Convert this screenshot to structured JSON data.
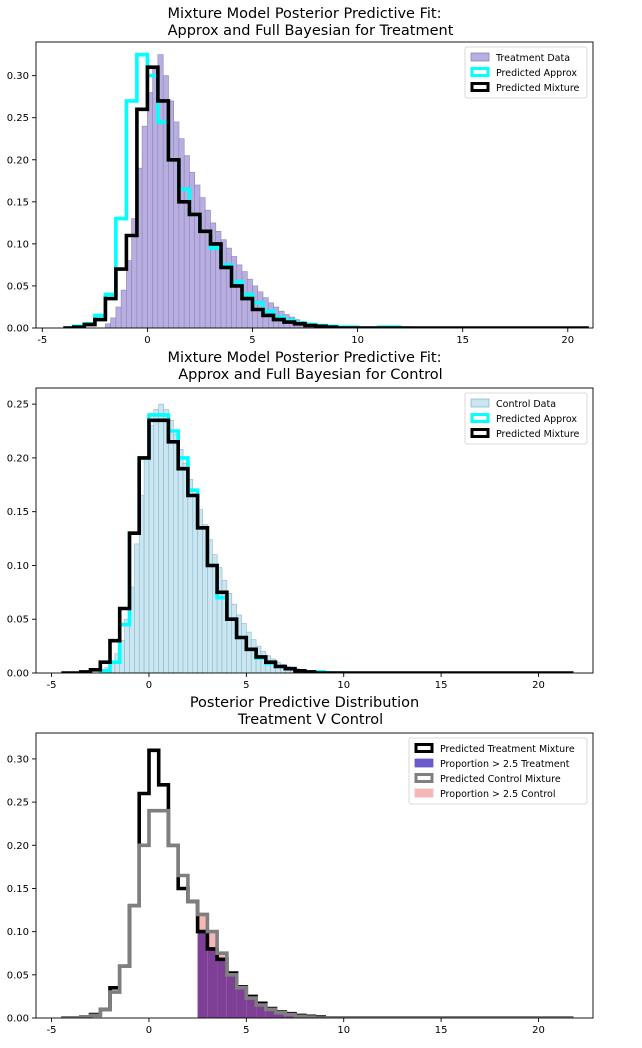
{
  "chart_data": [
    {
      "type": "histogram",
      "title_lines": [
        "Mixture Model Posterior Predictive Fit:",
        "Approx and Full Bayesian for Treatment"
      ],
      "xlim": [
        -5.3,
        21.2
      ],
      "ylim": [
        0,
        0.34
      ],
      "xticks": [
        -5,
        0,
        5,
        10,
        15,
        20
      ],
      "yticks": [
        0.0,
        0.05,
        0.1,
        0.15,
        0.2,
        0.25,
        0.3
      ],
      "grid": false,
      "legend_position": "top-right",
      "legend": [
        {
          "label": "Treatment Data",
          "style": "fill",
          "fill": "#b9aee0",
          "stroke": "#8e84b8"
        },
        {
          "label": "Predicted Approx",
          "style": "outline",
          "stroke": "#00ffff"
        },
        {
          "label": "Predicted Mixture",
          "style": "outline",
          "stroke": "#000000"
        }
      ],
      "data_hist": {
        "name": "Treatment Data",
        "fill": "#b9aee0",
        "edge": "#8e84b8",
        "start": -2.0,
        "width": 0.25,
        "values": [
          0.005,
          0.012,
          0.025,
          0.045,
          0.08,
          0.13,
          0.19,
          0.24,
          0.28,
          0.31,
          0.325,
          0.3,
          0.27,
          0.245,
          0.225,
          0.205,
          0.185,
          0.17,
          0.155,
          0.14,
          0.125,
          0.115,
          0.105,
          0.095,
          0.085,
          0.075,
          0.067,
          0.058,
          0.05,
          0.043,
          0.036,
          0.03,
          0.025,
          0.02,
          0.016,
          0.013,
          0.01,
          0.008,
          0.006,
          0.005,
          0.004,
          0.003,
          0.002,
          0.001
        ]
      },
      "step_series": [
        {
          "name": "Predicted Approx",
          "color": "#00ffff",
          "start": -4.0,
          "width": 0.5,
          "values": [
            0.0,
            0.002,
            0.005,
            0.015,
            0.04,
            0.13,
            0.27,
            0.325,
            0.3,
            0.245,
            0.2,
            0.165,
            0.135,
            0.115,
            0.095,
            0.075,
            0.055,
            0.04,
            0.03,
            0.02,
            0.013,
            0.009,
            0.006,
            0.004,
            0.003,
            0.002,
            0.001,
            0.001,
            0.0,
            0.0,
            0.001,
            0.001,
            0.0
          ]
        },
        {
          "name": "Predicted Mixture",
          "color": "#000000",
          "start": -4.0,
          "width": 0.5,
          "values": [
            0.0,
            0.001,
            0.004,
            0.01,
            0.035,
            0.07,
            0.11,
            0.26,
            0.31,
            0.27,
            0.2,
            0.15,
            0.135,
            0.115,
            0.1,
            0.072,
            0.05,
            0.035,
            0.022,
            0.015,
            0.01,
            0.007,
            0.005,
            0.003,
            0.002,
            0.001,
            0.0,
            0.0,
            0.0,
            0.0,
            0.0,
            0.0,
            0.0,
            0.0,
            0.0,
            0.0,
            0.0,
            0.0,
            0.0,
            0.0,
            0.0,
            0.0,
            0.0,
            0.0,
            0.0,
            0.0,
            0.0,
            0.0,
            0.0,
            0.0
          ],
          "tail_to": 20.6
        }
      ]
    },
    {
      "type": "histogram",
      "title_lines": [
        "Mixture Model Posterior Predictive Fit:",
        "Approx and Full Bayesian for Control"
      ],
      "xlim": [
        -5.8,
        22.8
      ],
      "ylim": [
        0,
        0.265
      ],
      "xticks": [
        -5,
        0,
        5,
        10,
        15,
        20
      ],
      "yticks": [
        0.0,
        0.05,
        0.1,
        0.15,
        0.2,
        0.25
      ],
      "grid": false,
      "legend_position": "top-right",
      "legend": [
        {
          "label": "Control Data",
          "style": "fill",
          "fill": "#c9e6f2",
          "stroke": "#8fb6c6"
        },
        {
          "label": "Predicted Approx",
          "style": "outline",
          "stroke": "#00ffff"
        },
        {
          "label": "Predicted Mixture",
          "style": "outline",
          "stroke": "#000000"
        }
      ],
      "data_hist": {
        "name": "Control Data",
        "fill": "#c9e6f2",
        "edge": "#8fb6c6",
        "start": -2.5,
        "width": 0.25,
        "values": [
          0.002,
          0.005,
          0.01,
          0.018,
          0.03,
          0.05,
          0.08,
          0.12,
          0.165,
          0.2,
          0.23,
          0.245,
          0.25,
          0.245,
          0.235,
          0.222,
          0.208,
          0.195,
          0.18,
          0.167,
          0.152,
          0.138,
          0.124,
          0.11,
          0.098,
          0.086,
          0.074,
          0.064,
          0.054,
          0.046,
          0.038,
          0.031,
          0.025,
          0.02,
          0.016,
          0.013,
          0.01,
          0.008,
          0.006,
          0.005,
          0.004,
          0.003,
          0.002,
          0.002,
          0.001
        ]
      },
      "step_series": [
        {
          "name": "Predicted Approx",
          "color": "#00ffff",
          "start": -2.5,
          "width": 0.5,
          "values": [
            0.002,
            0.01,
            0.045,
            0.13,
            0.2,
            0.24,
            0.24,
            0.225,
            0.2,
            0.17,
            0.135,
            0.1,
            0.07,
            0.05,
            0.033,
            0.022,
            0.014,
            0.009,
            0.006,
            0.004,
            0.002,
            0.001,
            0.001,
            0.0,
            0.0
          ]
        },
        {
          "name": "Predicted Mixture",
          "color": "#000000",
          "start": -4.5,
          "width": 0.5,
          "values": [
            0.0,
            0.0,
            0.001,
            0.003,
            0.01,
            0.03,
            0.06,
            0.13,
            0.2,
            0.235,
            0.235,
            0.215,
            0.19,
            0.165,
            0.135,
            0.1,
            0.075,
            0.05,
            0.033,
            0.022,
            0.015,
            0.01,
            0.006,
            0.004,
            0.002,
            0.001,
            0.0,
            0.0,
            0.0
          ],
          "tail_to": 21.8
        }
      ]
    },
    {
      "type": "histogram",
      "title_lines": [
        "Posterior Predictive Distribution",
        "Treatment V Control"
      ],
      "xlim": [
        -5.8,
        22.8
      ],
      "ylim": [
        0,
        0.33
      ],
      "xticks": [
        -5,
        0,
        5,
        10,
        15,
        20
      ],
      "yticks": [
        0.0,
        0.05,
        0.1,
        0.15,
        0.2,
        0.25,
        0.3
      ],
      "grid": false,
      "legend_position": "top-right",
      "legend": [
        {
          "label": "Predicted Treatment Mixture",
          "style": "outline",
          "stroke": "#000000"
        },
        {
          "label": "Proportion > 2.5 Treatment",
          "style": "fill",
          "fill": "#6a5acd",
          "stroke": "#6a5acd"
        },
        {
          "label": "Predicted Control Mixture",
          "style": "outline",
          "stroke": "#7f7f7f"
        },
        {
          "label": "Proportion > 2.5 Control",
          "style": "fill",
          "fill": "#f4b8b8",
          "stroke": "#f4b8b8"
        }
      ],
      "fills": [
        {
          "name": "Proportion > 2.5 Control",
          "color": "#f4b8b8",
          "from_series": 1,
          "min_x": 2.5
        },
        {
          "name": "Proportion > 2.5 Treatment",
          "color": "#7e3f96",
          "from_series": 0,
          "min_x": 2.5
        }
      ],
      "step_series": [
        {
          "name": "Predicted Treatment Mixture",
          "color": "#000000",
          "start": -4.5,
          "width": 0.5,
          "values": [
            0.0,
            0.0,
            0.001,
            0.004,
            0.01,
            0.035,
            0.06,
            0.13,
            0.26,
            0.31,
            0.27,
            0.2,
            0.15,
            0.135,
            0.1,
            0.08,
            0.068,
            0.052,
            0.036,
            0.025,
            0.017,
            0.011,
            0.007,
            0.005,
            0.003,
            0.002,
            0.001,
            0.0,
            0.0,
            0.0
          ],
          "tail_to": 21.8
        },
        {
          "name": "Predicted Control Mixture",
          "color": "#7f7f7f",
          "start": -4.5,
          "width": 0.5,
          "values": [
            0.0,
            0.0,
            0.001,
            0.003,
            0.01,
            0.03,
            0.06,
            0.13,
            0.2,
            0.24,
            0.24,
            0.2,
            0.165,
            0.135,
            0.12,
            0.1,
            0.075,
            0.05,
            0.035,
            0.023,
            0.015,
            0.01,
            0.006,
            0.004,
            0.002,
            0.001,
            0.0,
            0.0,
            0.0,
            0.0
          ],
          "tail_to": 21.8
        }
      ]
    }
  ]
}
